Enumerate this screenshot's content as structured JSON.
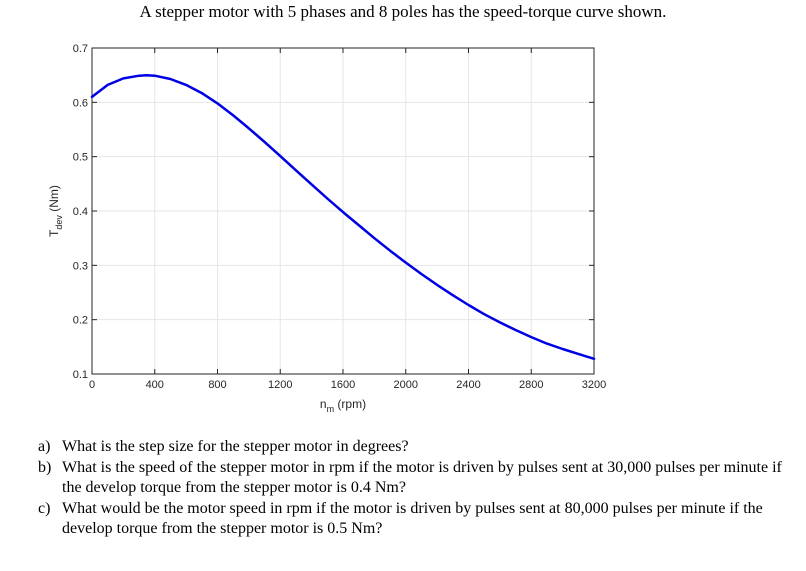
{
  "problem": {
    "statement": "A stepper motor with 5 phases and 8 poles has the speed-torque curve shown.",
    "questions": [
      {
        "letter": "a)",
        "text": "What is the step size for the stepper motor in degrees?"
      },
      {
        "letter": "b)",
        "text": "What is the speed of the stepper motor in rpm if the motor is driven by pulses sent at 30,000 pulses per minute if the develop torque from the stepper motor is 0.4 Nm?"
      },
      {
        "letter": "c)",
        "text": "What would be the motor speed in rpm if the motor is driven by pulses sent at 80,000 pulses per minute if the develop torque from the stepper motor is 0.5 Nm?"
      }
    ]
  },
  "chart_data": {
    "type": "line",
    "title": "",
    "xlabel": {
      "base": "n",
      "sub": "m",
      "rest": " (rpm)"
    },
    "ylabel": {
      "base": "T",
      "sub": "dev",
      "rest": " (Nm)"
    },
    "xlim": [
      0,
      3200
    ],
    "ylim": [
      0.1,
      0.7
    ],
    "xticks": [
      0,
      400,
      800,
      1200,
      1600,
      2000,
      2400,
      2800,
      3200
    ],
    "yticks": [
      0.1,
      0.2,
      0.3,
      0.4,
      0.5,
      0.6,
      0.7
    ],
    "grid": true,
    "line_color": "#0000e6",
    "series": [
      {
        "x": [
          0,
          100,
          200,
          300,
          350,
          400,
          500,
          600,
          700,
          800,
          900,
          1000,
          1100,
          1200,
          1300,
          1400,
          1500,
          1600,
          1700,
          1800,
          1900,
          2000,
          2100,
          2200,
          2300,
          2400,
          2500,
          2600,
          2700,
          2800,
          2900,
          3000,
          3100,
          3200
        ],
        "values": [
          0.61,
          0.632,
          0.644,
          0.649,
          0.65,
          0.649,
          0.643,
          0.632,
          0.617,
          0.598,
          0.576,
          0.552,
          0.527,
          0.501,
          0.475,
          0.449,
          0.423,
          0.398,
          0.374,
          0.35,
          0.327,
          0.305,
          0.284,
          0.264,
          0.245,
          0.227,
          0.21,
          0.195,
          0.181,
          0.168,
          0.156,
          0.146,
          0.137,
          0.128
        ]
      }
    ]
  }
}
